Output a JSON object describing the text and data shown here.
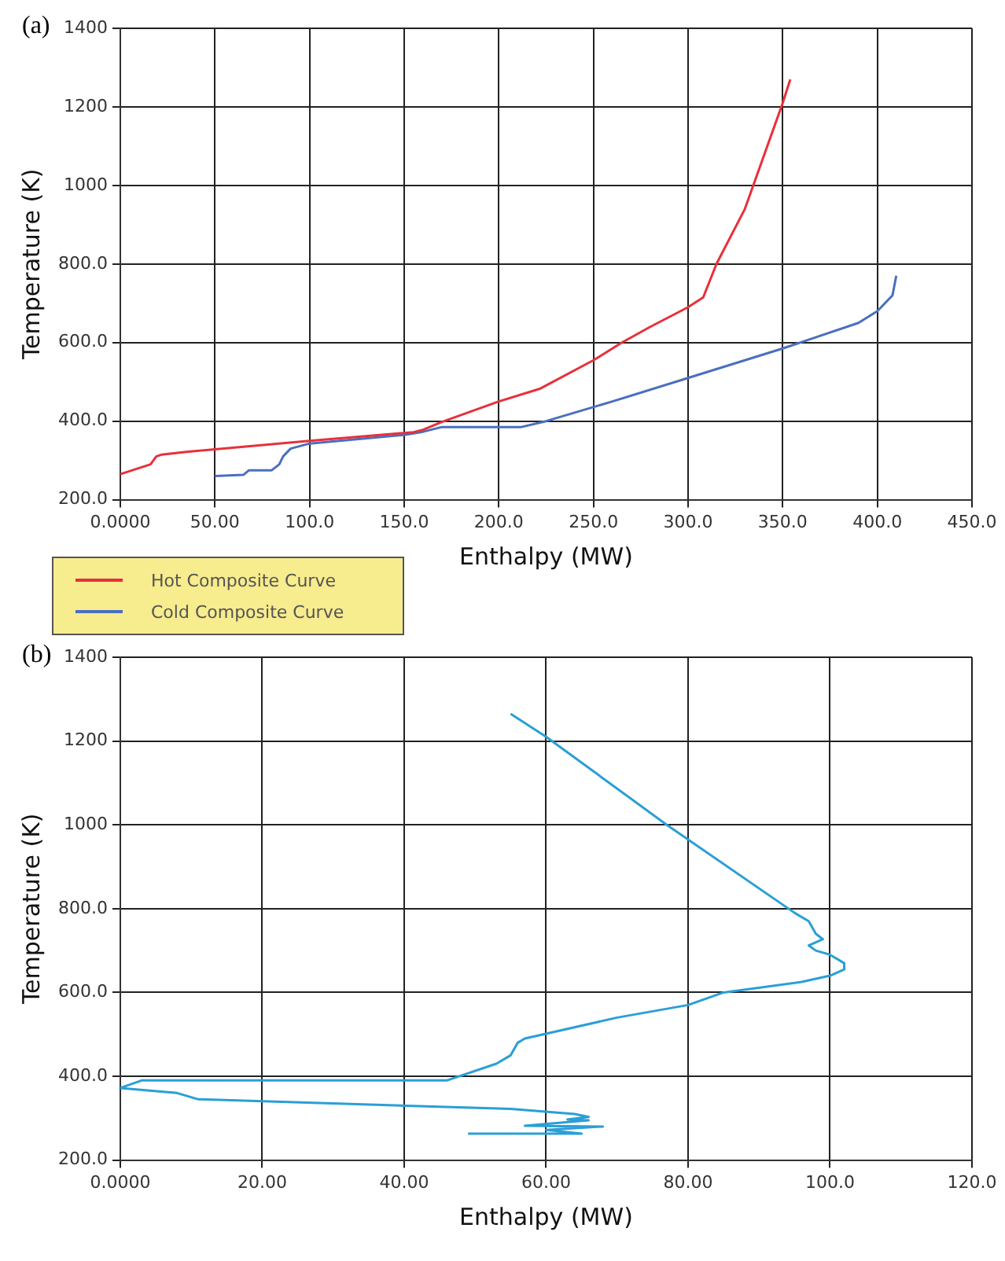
{
  "chart_data": [
    {
      "type": "line",
      "annotations": [
        "(a)"
      ],
      "xlabel": "Enthalpy (MW)",
      "ylabel": "Temperature (K)",
      "xlim": [
        0,
        450
      ],
      "xticks": [
        {
          "value": 0,
          "label": "0.0000"
        },
        {
          "value": 50,
          "label": "50.00"
        },
        {
          "value": 100,
          "label": "100.0"
        },
        {
          "value": 150,
          "label": "150.0"
        },
        {
          "value": 200,
          "label": "200.0"
        },
        {
          "value": 250,
          "label": "250.0"
        },
        {
          "value": 300,
          "label": "300.0"
        },
        {
          "value": 350,
          "label": "350.0"
        },
        {
          "value": 400,
          "label": "400.0"
        },
        {
          "value": 450,
          "label": "450.0"
        }
      ],
      "ylim": [
        200,
        1400
      ],
      "yticks": [
        {
          "value": 200,
          "label": "200.0"
        },
        {
          "value": 400,
          "label": "400.0"
        },
        {
          "value": 600,
          "label": "600.0"
        },
        {
          "value": 800,
          "label": "800.0"
        },
        1000,
        1200,
        1400
      ],
      "grid": true,
      "legend": "bottom left",
      "marker": "none",
      "series": [
        {
          "name": "Hot Composite Curve",
          "color": "#e8303a",
          "x": [
            0,
            16,
            19,
            22,
            35,
            100,
            155,
            160,
            170,
            200,
            222,
            250,
            265,
            280,
            300,
            308,
            315,
            330,
            350,
            354
          ],
          "values": [
            265,
            290,
            310,
            315,
            322,
            350,
            372,
            378,
            398,
            450,
            483,
            555,
            600,
            640,
            690,
            715,
            800,
            940,
            1210,
            1270
          ]
        },
        {
          "name": "Cold Composite Curve",
          "color": "#4a6fbf",
          "x": [
            50,
            65,
            68,
            80,
            84,
            86,
            90,
            100,
            150,
            160,
            170,
            212,
            225,
            260,
            300,
            350,
            390,
            400,
            408,
            410
          ],
          "values": [
            260,
            263,
            275,
            275,
            290,
            310,
            330,
            343,
            365,
            373,
            385,
            385,
            400,
            450,
            510,
            585,
            650,
            680,
            720,
            770
          ]
        }
      ]
    },
    {
      "type": "line",
      "annotations": [
        "(b)"
      ],
      "xlabel": "Enthalpy (MW)",
      "ylabel": "Temperature (K)",
      "xlim": [
        0,
        120
      ],
      "xticks": [
        {
          "value": 0,
          "label": "0.0000"
        },
        {
          "value": 20,
          "label": "20.00"
        },
        {
          "value": 40,
          "label": "40.00"
        },
        {
          "value": 60,
          "label": "60.00"
        },
        {
          "value": 80,
          "label": "80.00"
        },
        {
          "value": 100,
          "label": "100.0"
        },
        {
          "value": 120,
          "label": "120.0"
        }
      ],
      "ylim": [
        200,
        1400
      ],
      "yticks": [
        {
          "value": 200,
          "label": "200.0"
        },
        {
          "value": 400,
          "label": "400.0"
        },
        {
          "value": 600,
          "label": "600.0"
        },
        {
          "value": 800,
          "label": "800.0"
        },
        1000,
        1200,
        1400
      ],
      "grid": true,
      "marker": "none",
      "series": [
        {
          "color": "#2a9fd6",
          "x": [
            55,
            60,
            77,
            95,
            97,
            98,
            99,
            97,
            98,
            100,
            102,
            102,
            100,
            96,
            85,
            80,
            70,
            57,
            56,
            55,
            53,
            46,
            3,
            0,
            8,
            11,
            55,
            64,
            66,
            63,
            66,
            57,
            68,
            60,
            65,
            49
          ],
          "values": [
            1265,
            1210,
            1000,
            790,
            770,
            740,
            727,
            712,
            700,
            690,
            670,
            655,
            640,
            625,
            600,
            570,
            540,
            490,
            480,
            450,
            430,
            390,
            390,
            372,
            360,
            345,
            322,
            310,
            303,
            297,
            295,
            282,
            280,
            272,
            263,
            263
          ]
        }
      ]
    }
  ]
}
